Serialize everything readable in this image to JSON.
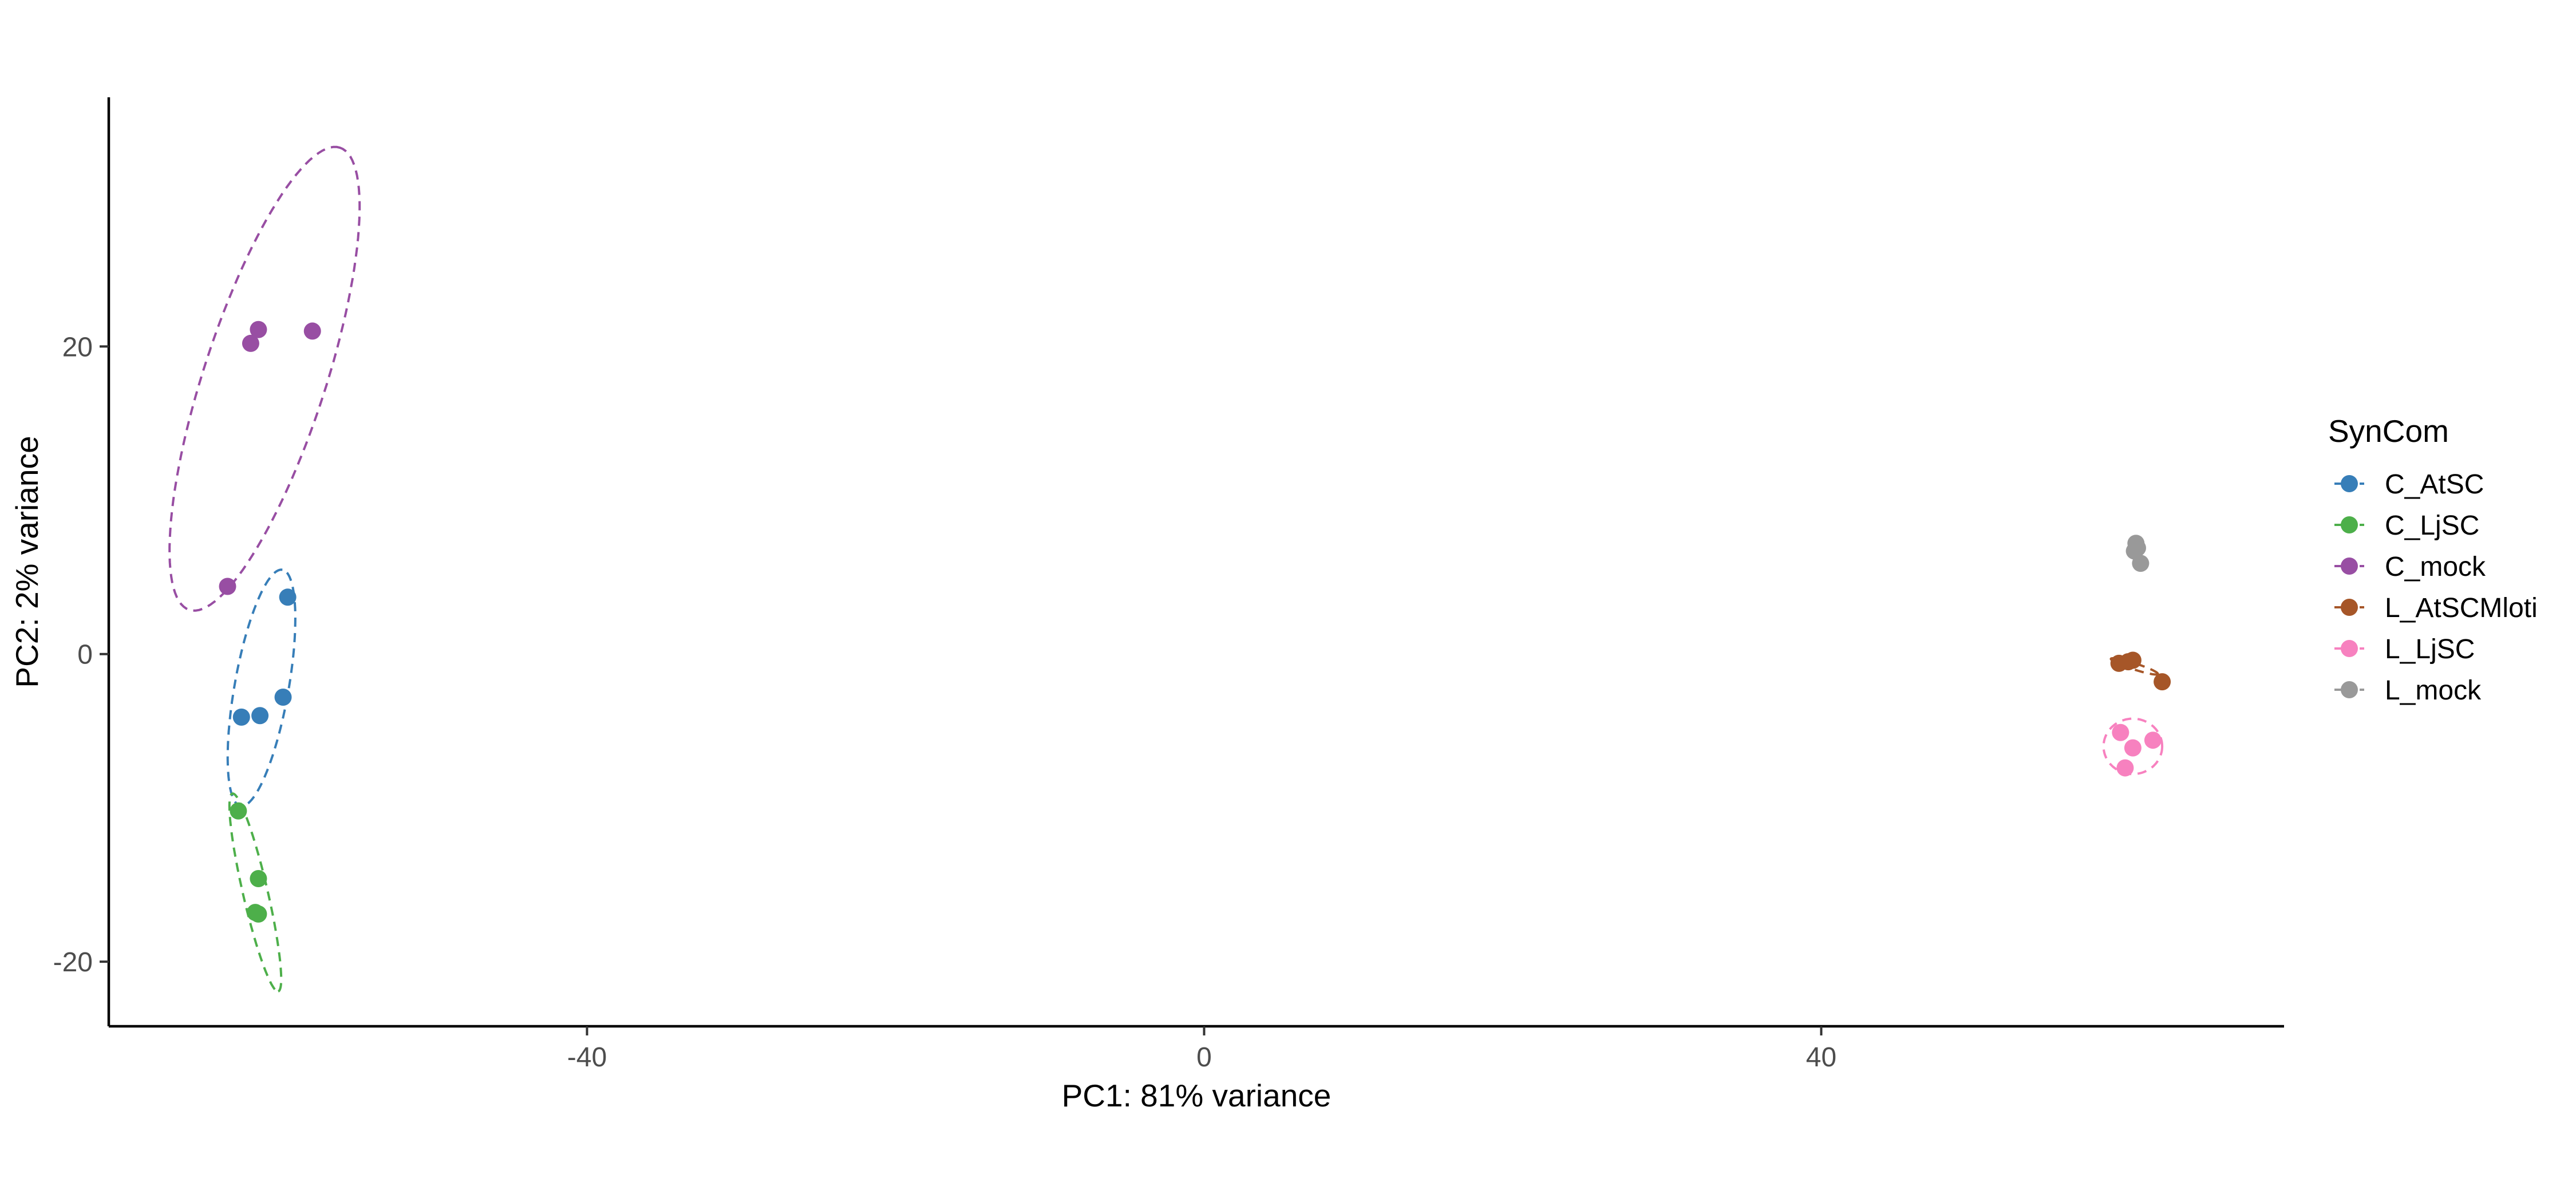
{
  "chart_data": {
    "type": "scatter",
    "title": "",
    "xlabel": "PC1: 81% variance",
    "ylabel": "PC2: 2% variance",
    "xlim": [
      -71,
      70
    ],
    "ylim": [
      -24.2,
      36.2
    ],
    "xticks": [
      -40,
      0,
      40
    ],
    "yticks": [
      -20,
      0,
      20
    ],
    "grid": false,
    "ellipses": "dashed confidence ellipse per group",
    "legend": {
      "title": "SynCom",
      "placement": "right"
    },
    "series": [
      {
        "name": "C_AtSC",
        "color": "#377EB8",
        "points": [
          [
            -59.4,
            3.7
          ],
          [
            -62.4,
            -4.1
          ],
          [
            -61.2,
            -4.0
          ],
          [
            -59.7,
            -2.8
          ]
        ],
        "ellipse": {
          "center": [
            -61.1,
            -2.2
          ],
          "semi_major": 7.8,
          "semi_minor": 1.75,
          "angle_deg": 80
        }
      },
      {
        "name": "C_LjSC",
        "color": "#4DAF4A",
        "points": [
          [
            -62.6,
            -10.2
          ],
          [
            -61.3,
            -14.6
          ],
          [
            -61.5,
            -16.8
          ],
          [
            -61.3,
            -16.9
          ]
        ],
        "ellipse": {
          "center": [
            -61.5,
            -15.5
          ],
          "semi_major": 6.6,
          "semi_minor": 0.8,
          "angle_deg": -77
        }
      },
      {
        "name": "C_mock",
        "color": "#984EA3",
        "points": [
          [
            -61.8,
            20.2
          ],
          [
            -61.3,
            21.1
          ],
          [
            -57.8,
            21.0
          ],
          [
            -63.3,
            4.4
          ]
        ],
        "ellipse": {
          "center": [
            -60.9,
            17.9
          ],
          "semi_major": 15.8,
          "semi_minor": 3.95,
          "angle_deg": 72
        }
      },
      {
        "name": "L_AtSCMloti",
        "color": "#A65628",
        "points": [
          [
            59.3,
            -0.6
          ],
          [
            59.9,
            -0.5
          ],
          [
            60.2,
            -0.4
          ],
          [
            62.1,
            -1.8
          ]
        ],
        "ellipse": {
          "center": [
            60.3,
            -0.8
          ],
          "semi_major": 1.6,
          "semi_minor": 0.2,
          "angle_deg": -18
        }
      },
      {
        "name": "L_LjSC",
        "color": "#F781BF",
        "points": [
          [
            59.4,
            -5.1
          ],
          [
            61.5,
            -5.6
          ],
          [
            60.2,
            -6.1
          ],
          [
            59.7,
            -7.4
          ]
        ],
        "ellipse": {
          "center": [
            60.2,
            -6.0
          ],
          "semi_major": 1.9,
          "semi_minor": 1.8,
          "angle_deg": 0
        }
      },
      {
        "name": "L_mock",
        "color": "#999999",
        "points": [
          [
            60.4,
            7.2
          ],
          [
            60.5,
            6.9
          ],
          [
            60.3,
            6.7
          ],
          [
            60.7,
            5.9
          ]
        ],
        "ellipse": null
      }
    ]
  }
}
